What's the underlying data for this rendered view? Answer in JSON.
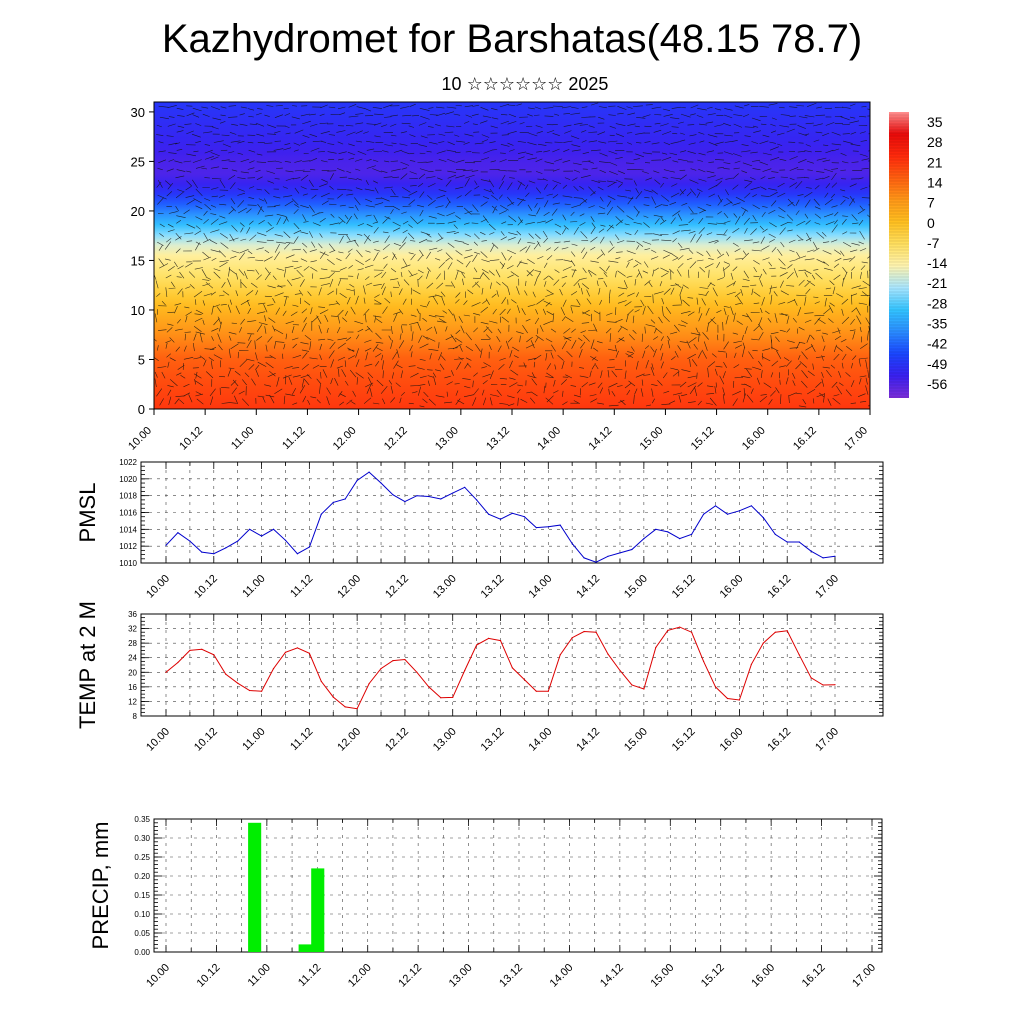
{
  "title": "Kazhydromet for Barshatas(48.15 78.7)",
  "subtitle": "10 ☆☆☆☆☆☆ 2025",
  "chart_data": [
    {
      "type": "heatmap",
      "name": "temperature-wind-cross-section",
      "x_tick_labels": [
        "10.00",
        "10.12",
        "11.00",
        "11.12",
        "12.00",
        "12.12",
        "13.00",
        "13.12",
        "14.00",
        "14.12",
        "15.00",
        "15.12",
        "16.00",
        "16.12",
        "17.00"
      ],
      "y_ticks": [
        0,
        5,
        10,
        15,
        20,
        25,
        30
      ],
      "ylim": [
        0,
        31
      ],
      "colorbar": {
        "labels": [
          "35",
          "28",
          "21",
          "14",
          "7",
          "0",
          "-7",
          "-14",
          "-21",
          "-28",
          "-35",
          "-42",
          "-49",
          "-56"
        ],
        "range": [
          -63,
          42
        ],
        "colors": [
          "#7b2ed8",
          "#3a20f0",
          "#1a46ff",
          "#2a8cff",
          "#33c4ff",
          "#a8e6ff",
          "#fff4b0",
          "#ffe060",
          "#ffc020",
          "#ff9818",
          "#ff6010",
          "#ff2a0c",
          "#e80a0a",
          "#ff9090"
        ]
      },
      "temperature_levels": [
        {
          "height": 0,
          "value": 24
        },
        {
          "height": 5,
          "value": 18
        },
        {
          "height": 10,
          "value": 4
        },
        {
          "height": 13,
          "value": -6
        },
        {
          "height": 16,
          "value": -14
        },
        {
          "height": 18,
          "value": -28
        },
        {
          "height": 20,
          "value": -40
        },
        {
          "height": 22,
          "value": -52
        },
        {
          "height": 24,
          "value": -58
        },
        {
          "height": 27,
          "value": -54
        },
        {
          "height": 31,
          "value": -50
        }
      ]
    },
    {
      "type": "line",
      "name": "pmsl",
      "ylabel": "PMSL",
      "ylim": [
        1010,
        1022
      ],
      "y_ticks": [
        1010,
        1012,
        1014,
        1016,
        1018,
        1020,
        1022
      ],
      "x_tick_labels": [
        "10.00",
        "10.12",
        "11.00",
        "11.12",
        "12.00",
        "12.12",
        "13.00",
        "13.12",
        "14.00",
        "14.12",
        "15.00",
        "15.12",
        "16.00",
        "16.12",
        "17.00"
      ],
      "color": "#0000cc",
      "values": [
        1012.1,
        1013.6,
        1012.6,
        1011.3,
        1011.1,
        1011.8,
        1012.6,
        1014.0,
        1013.2,
        1014.0,
        1012.7,
        1011.1,
        1011.9,
        1015.8,
        1017.2,
        1017.6,
        1019.8,
        1020.8,
        1019.5,
        1018.1,
        1017.3,
        1018.0,
        1017.9,
        1017.6,
        1018.3,
        1019.0,
        1017.5,
        1015.8,
        1015.2,
        1015.9,
        1015.5,
        1014.2,
        1014.3,
        1014.5,
        1012.3,
        1010.6,
        1010.1,
        1010.8,
        1011.2,
        1011.6,
        1012.9,
        1014.0,
        1013.7,
        1012.9,
        1013.4,
        1015.8,
        1016.8,
        1015.8,
        1016.2,
        1016.8,
        1015.4,
        1013.4,
        1012.5,
        1012.5,
        1011.4,
        1010.6,
        1010.8
      ]
    },
    {
      "type": "line",
      "name": "temp-2m",
      "ylabel": "TEMP at 2 M",
      "ylim": [
        8,
        36
      ],
      "y_ticks": [
        8,
        12,
        16,
        20,
        24,
        28,
        32,
        36
      ],
      "x_tick_labels": [
        "10.00",
        "10.12",
        "11.00",
        "11.12",
        "12.00",
        "12.12",
        "13.00",
        "13.12",
        "14.00",
        "14.12",
        "15.00",
        "15.12",
        "16.00",
        "16.12",
        "17.00"
      ],
      "color": "#dd0000",
      "values": [
        20.0,
        22.7,
        26.0,
        26.3,
        24.8,
        19.5,
        17.0,
        15.0,
        14.8,
        21.0,
        25.5,
        26.7,
        25.2,
        17.5,
        13.2,
        10.5,
        10.0,
        16.9,
        21.0,
        23.2,
        23.5,
        20.0,
        16.0,
        13.0,
        13.1,
        20.5,
        27.5,
        29.3,
        28.7,
        21.2,
        18.0,
        14.8,
        14.8,
        24.8,
        29.5,
        31.2,
        31.0,
        25.0,
        20.5,
        16.5,
        15.4,
        26.8,
        31.5,
        32.4,
        31.0,
        23.0,
        16.0,
        12.8,
        12.4,
        22.2,
        28.0,
        31.0,
        31.4,
        24.8,
        18.5,
        16.5,
        16.6
      ]
    },
    {
      "type": "bar",
      "name": "precip",
      "ylabel": "PRECIP, mm",
      "ylim": [
        0,
        0.35
      ],
      "y_tick_labels": [
        "0.00",
        "0.05",
        "0.10",
        "0.15",
        "0.20",
        "0.25",
        "0.30",
        "0.35"
      ],
      "x_tick_labels": [
        "10.00",
        "10.12",
        "11.00",
        "11.12",
        "12.00",
        "12.12",
        "13.00",
        "13.12",
        "14.00",
        "14.12",
        "15.00",
        "15.12",
        "16.00",
        "16.12",
        "17.00"
      ],
      "color": "#00ee00",
      "values": [
        0,
        0,
        0,
        0,
        0,
        0.34,
        0,
        0,
        0,
        0.02,
        0.22,
        0,
        0,
        0,
        0,
        0,
        0,
        0,
        0,
        0,
        0,
        0,
        0,
        0,
        0,
        0,
        0,
        0,
        0,
        0,
        0,
        0,
        0,
        0,
        0,
        0,
        0,
        0,
        0,
        0,
        0,
        0,
        0,
        0,
        0,
        0,
        0,
        0,
        0,
        0,
        0,
        0,
        0,
        0,
        0,
        0
      ]
    }
  ]
}
